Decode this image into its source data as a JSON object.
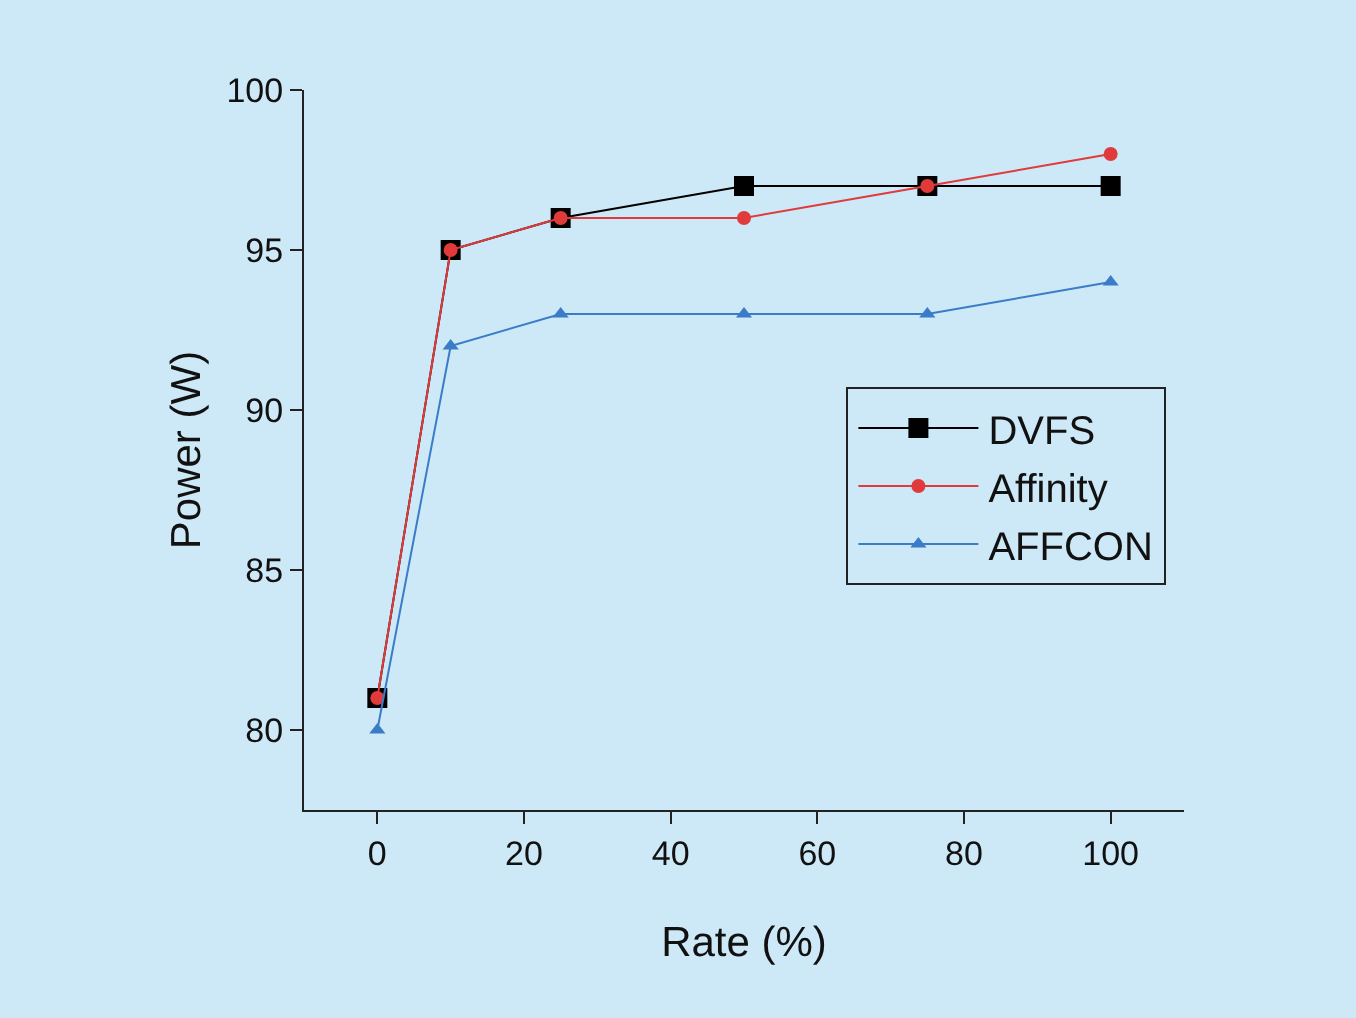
{
  "chart_data": {
    "type": "line",
    "xlabel": "Rate (%)",
    "ylabel": "Power (W)",
    "x": [
      0,
      10,
      25,
      50,
      75,
      100
    ],
    "series": [
      {
        "name": "DVFS",
        "color": "#000000",
        "marker": "square",
        "values": [
          81,
          95,
          96,
          97,
          97,
          97
        ]
      },
      {
        "name": "Affinity",
        "color": "#e03a3a",
        "marker": "circle",
        "values": [
          81,
          95,
          96,
          96,
          97,
          98
        ]
      },
      {
        "name": "AFFCON",
        "color": "#3a7cc8",
        "marker": "triangle",
        "values": [
          80,
          92,
          93,
          93,
          93,
          94
        ]
      }
    ],
    "xlim": [
      -10,
      110
    ],
    "xticks": [
      0,
      20,
      40,
      60,
      80,
      100
    ],
    "ylim": [
      77.5,
      100
    ],
    "yticks": [
      80,
      85,
      90,
      95,
      100
    ],
    "grid": false,
    "legend": "right",
    "line_style": "solid"
  }
}
